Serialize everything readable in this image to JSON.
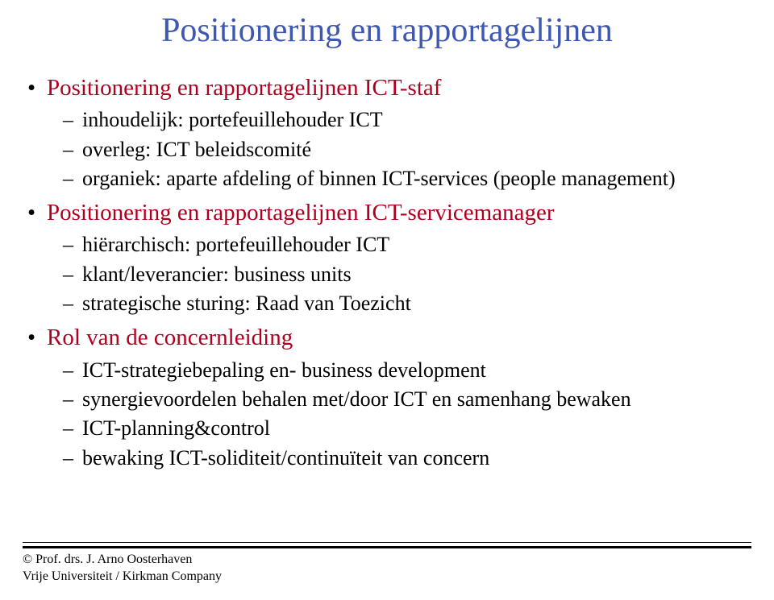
{
  "colors": {
    "title": "#3e58b2",
    "lvl1_text": "#b00020",
    "lvl1_bullet": "#000000",
    "lvl2_text": "#000000",
    "background": "#ffffff",
    "footer_rule": "#000000"
  },
  "typography": {
    "font_family": "Times New Roman",
    "title_fontsize": 42,
    "lvl1_fontsize": 29,
    "lvl2_fontsize": 26,
    "footer_fontsize": 16
  },
  "title": "Positionering en rapportagelijnen",
  "bullets": [
    {
      "text": "Positionering en rapportagelijnen ICT-staf",
      "children": [
        "inhoudelijk: portefeuillehouder ICT",
        "overleg: ICT beleidscomité",
        "organiek: aparte afdeling of binnen ICT-services (people management)"
      ]
    },
    {
      "text": "Positionering en rapportagelijnen ICT-servicemanager",
      "children": [
        "hiërarchisch: portefeuillehouder ICT",
        "klant/leverancier: business units",
        "strategische sturing: Raad van Toezicht"
      ]
    },
    {
      "text": "Rol van de concernleiding",
      "children": [
        "ICT-strategiebepaling en- business development",
        "synergievoordelen behalen met/door ICT en samenhang bewaken",
        "ICT-planning&control",
        "bewaking ICT-soliditeit/continuïteit van concern"
      ]
    }
  ],
  "footer": {
    "line1": "© Prof. drs. J. Arno Oosterhaven",
    "line2": "Vrije Universiteit / Kirkman Company"
  }
}
